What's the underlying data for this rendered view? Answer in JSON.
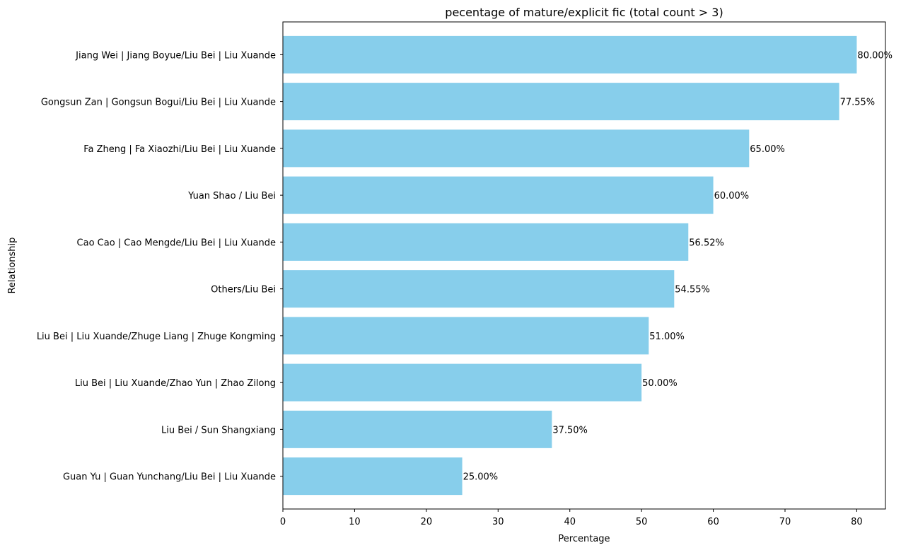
{
  "chart_data": {
    "type": "bar",
    "orientation": "horizontal",
    "title": "pecentage of mature/explicit fic (total count > 3)",
    "xlabel": "Percentage",
    "ylabel": "Relationship",
    "xlim": [
      0,
      84
    ],
    "xticks": [
      0,
      10,
      20,
      30,
      40,
      50,
      60,
      70,
      80
    ],
    "grid": false,
    "bar_color": "#87ceeb",
    "categories": [
      "Jiang Wei | Jiang Boyue/Liu Bei | Liu Xuande",
      "Gongsun Zan | Gongsun Bogui/Liu Bei | Liu Xuande",
      "Fa Zheng | Fa Xiaozhi/Liu Bei | Liu Xuande",
      "Yuan Shao / Liu Bei",
      "Cao Cao | Cao Mengde/Liu Bei | Liu Xuande",
      "Others/Liu Bei",
      "Liu Bei | Liu Xuande/Zhuge Liang | Zhuge Kongming",
      "Liu Bei | Liu Xuande/Zhao Yun | Zhao Zilong",
      "Liu Bei / Sun Shangxiang",
      "Guan Yu | Guan Yunchang/Liu Bei | Liu Xuande"
    ],
    "values": [
      80.0,
      77.55,
      65.0,
      60.0,
      56.52,
      54.55,
      51.0,
      50.0,
      37.5,
      25.0
    ],
    "value_labels": [
      "80.00%",
      "77.55%",
      "65.00%",
      "60.00%",
      "56.52%",
      "54.55%",
      "51.00%",
      "50.00%",
      "37.50%",
      "25.00%"
    ]
  }
}
